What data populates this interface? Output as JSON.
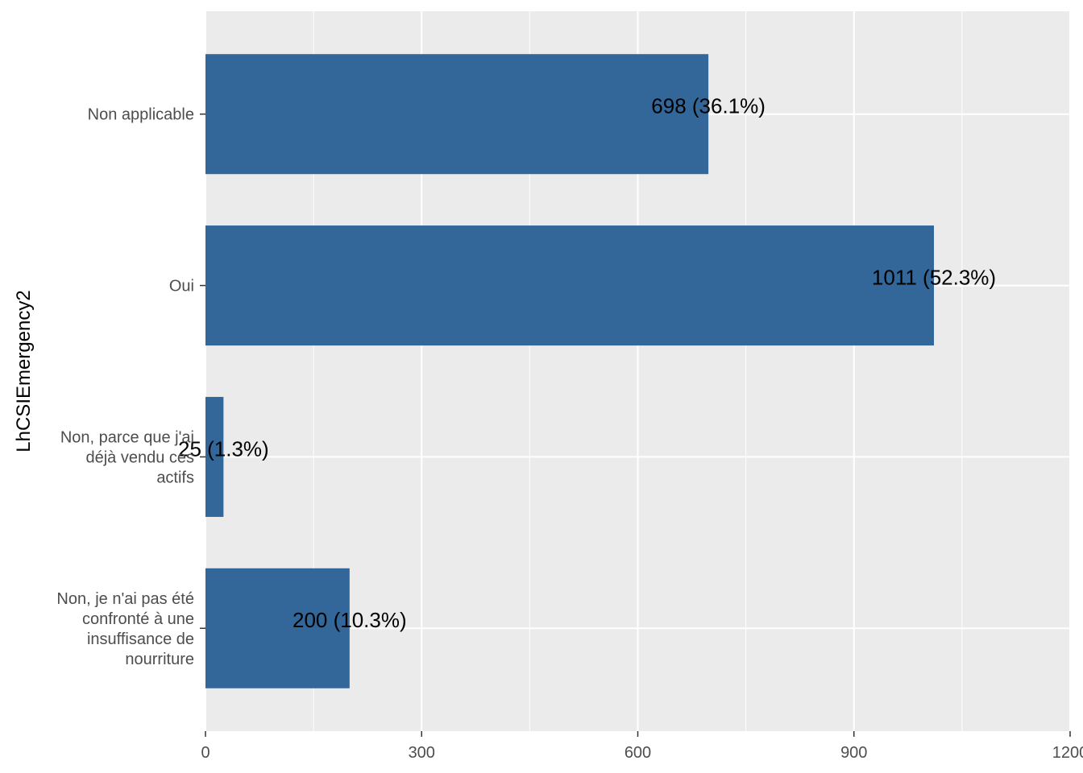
{
  "chart_data": {
    "type": "bar",
    "orientation": "horizontal",
    "title": "",
    "xlabel": "",
    "ylabel": "LhCSIEmergency2",
    "categories": [
      [
        "Non applicable"
      ],
      [
        "Oui"
      ],
      [
        "Non, parce que j'ai",
        "déjà vendu ces",
        "actifs"
      ],
      [
        "Non, je n'ai pas été",
        "confronté à une",
        "insuffisance de",
        "nourriture"
      ]
    ],
    "values": [
      698,
      1011,
      25,
      200
    ],
    "data_labels": [
      "698 (36.1%)",
      "1011 (52.3%)",
      "25 (1.3%)",
      "200 (10.3%)"
    ],
    "xlim": [
      0,
      1200
    ],
    "x_ticks": [
      0,
      300,
      600,
      900,
      1200
    ],
    "x_tick_labels": [
      "0",
      "300",
      "600",
      "900",
      "1200"
    ],
    "grid": true,
    "colors": {
      "bar": "#336699",
      "panel": "#ebebeb",
      "grid": "#ffffff",
      "tick": "#333333"
    }
  }
}
